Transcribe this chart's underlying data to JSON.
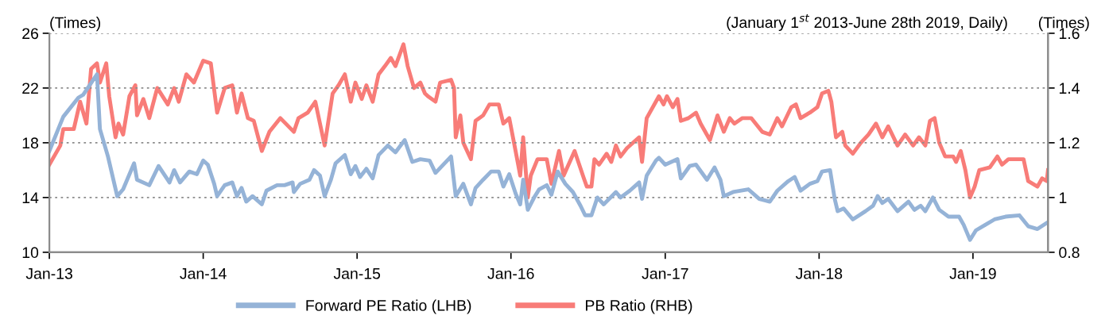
{
  "chart_data": {
    "type": "line",
    "subtitle": "(January 1$^{st}$ 2013-June 28th 2019, Daily)",
    "ylabel": "(Times)",
    "y2label": "(Times)",
    "xlim": [
      "2013-01-01",
      "2019-06-28"
    ],
    "xticks": [
      {
        "value": "2013-01-01",
        "label": "Jan-13"
      },
      {
        "value": "2014-01-01",
        "label": "Jan-14"
      },
      {
        "value": "2015-01-01",
        "label": "Jan-15"
      },
      {
        "value": "2016-01-01",
        "label": "Jan-16"
      },
      {
        "value": "2017-01-01",
        "label": "Jan-17"
      },
      {
        "value": "2018-01-01",
        "label": "Jan-18"
      },
      {
        "value": "2019-01-01",
        "label": "Jan-19"
      }
    ],
    "ylim": [
      10,
      26
    ],
    "yticks": [
      10,
      14,
      18,
      22,
      26
    ],
    "y2lim": [
      0.8,
      1.6
    ],
    "y2ticks": [
      0.8,
      {
        "value": 1.0,
        "label": "1"
      },
      1.2,
      1.4,
      1.6
    ],
    "grid": "y",
    "legend": "bottom",
    "marker": "none",
    "line_style": "solid",
    "series": [
      {
        "name": "Forward PE Ratio (LHB)",
        "color": "#95b3d7",
        "x": [
          "2013-01-01",
          "2013-02-03",
          "2013-03-11",
          "2013-03-22",
          "2013-04-24",
          "2013-05-01",
          "2013-05-20",
          "2013-06-11",
          "2013-06-25",
          "2013-07-21",
          "2013-07-28",
          "2013-08-26",
          "2013-09-17",
          "2013-10-13",
          "2013-10-24",
          "2013-11-07",
          "2013-11-29",
          "2013-12-17",
          "2014-01-01",
          "2014-01-12",
          "2014-01-27",
          "2014-02-03",
          "2014-02-21",
          "2014-03-11",
          "2014-03-22",
          "2014-04-02",
          "2014-04-13",
          "2014-04-28",
          "2014-05-20",
          "2014-05-31",
          "2014-06-25",
          "2014-07-13",
          "2014-08-01",
          "2014-08-04",
          "2014-08-19",
          "2014-09-10",
          "2014-09-21",
          "2014-10-05",
          "2014-10-16",
          "2014-10-31",
          "2014-11-11",
          "2014-12-03",
          "2014-12-17",
          "2014-12-28",
          "2015-01-08",
          "2015-01-23",
          "2015-02-07",
          "2015-02-21",
          "2015-03-15",
          "2015-04-02",
          "2015-04-24",
          "2015-05-12",
          "2015-05-31",
          "2015-06-22",
          "2015-07-06",
          "2015-08-12",
          "2015-08-23",
          "2015-09-10",
          "2015-09-28",
          "2015-10-09",
          "2015-10-27",
          "2015-11-15",
          "2015-12-03",
          "2015-12-14",
          "2015-12-28",
          "2016-01-12",
          "2016-01-23",
          "2016-01-30",
          "2016-02-10",
          "2016-02-25",
          "2016-03-08",
          "2016-03-26",
          "2016-04-06",
          "2016-04-21",
          "2016-05-09",
          "2016-05-27",
          "2016-06-14",
          "2016-06-25",
          "2016-07-10",
          "2016-07-24",
          "2016-08-08",
          "2016-09-06",
          "2016-09-17",
          "2016-10-09",
          "2016-10-31",
          "2016-11-07",
          "2016-11-18",
          "2016-12-10",
          "2016-12-17",
          "2017-01-01",
          "2017-01-30",
          "2017-02-07",
          "2017-02-28",
          "2017-03-15",
          "2017-04-10",
          "2017-04-28",
          "2017-05-12",
          "2017-05-20",
          "2017-06-11",
          "2017-07-17",
          "2017-08-12",
          "2017-09-06",
          "2017-09-24",
          "2017-10-20",
          "2017-11-04",
          "2017-11-18",
          "2017-12-10",
          "2017-12-28",
          "2018-01-08",
          "2018-01-27",
          "2018-02-07",
          "2018-02-14",
          "2018-02-28",
          "2018-03-22",
          "2018-04-21",
          "2018-05-09",
          "2018-05-20",
          "2018-05-31",
          "2018-06-14",
          "2018-07-06",
          "2018-08-01",
          "2018-08-15",
          "2018-08-30",
          "2018-09-10",
          "2018-09-28",
          "2018-10-13",
          "2018-11-04",
          "2018-11-29",
          "2018-12-10",
          "2018-12-25",
          "2019-01-08",
          "2019-01-30",
          "2019-02-21",
          "2019-03-19",
          "2019-04-21",
          "2019-05-12",
          "2019-06-03",
          "2019-06-28"
        ],
        "values": [
          17.4,
          19.9,
          21.3,
          21.5,
          23.0,
          19.0,
          17.0,
          14.1,
          14.6,
          16.5,
          15.3,
          14.9,
          16.3,
          15.1,
          16.0,
          15.1,
          15.9,
          15.7,
          16.7,
          16.4,
          15.0,
          14.1,
          14.9,
          15.1,
          14.1,
          14.7,
          13.7,
          14.1,
          13.5,
          14.5,
          14.9,
          14.9,
          15.1,
          14.4,
          15.0,
          15.3,
          16.0,
          15.6,
          14.1,
          15.3,
          16.5,
          17.1,
          15.7,
          16.3,
          15.5,
          16.1,
          15.4,
          17.1,
          17.8,
          17.3,
          18.2,
          16.6,
          16.8,
          16.7,
          15.8,
          17.0,
          14.1,
          15.0,
          13.5,
          14.7,
          15.3,
          15.9,
          15.9,
          14.8,
          15.7,
          14.3,
          13.5,
          15.3,
          13.1,
          14.0,
          14.6,
          14.9,
          14.2,
          15.9,
          15.0,
          14.4,
          13.4,
          12.7,
          12.7,
          14.0,
          13.5,
          14.4,
          14.0,
          14.5,
          15.1,
          13.9,
          15.6,
          16.7,
          16.9,
          16.4,
          16.8,
          15.4,
          16.3,
          16.4,
          15.3,
          16.2,
          15.3,
          14.1,
          14.4,
          14.6,
          13.9,
          13.7,
          14.5,
          15.2,
          15.5,
          14.5,
          15.0,
          15.2,
          15.9,
          16.0,
          13.9,
          13.0,
          13.2,
          12.4,
          13.0,
          13.4,
          14.1,
          13.6,
          13.9,
          13.0,
          13.7,
          13.1,
          13.4,
          13.0,
          14.0,
          13.1,
          12.6,
          12.6,
          12.0,
          10.9,
          11.6,
          12.0,
          12.4,
          12.6,
          12.7,
          11.9,
          11.7,
          12.2
        ]
      },
      {
        "name": "PB Ratio (RHB)",
        "color": "#f87c78",
        "axis": "y2",
        "x": [
          "2013-01-01",
          "2013-01-27",
          "2013-02-03",
          "2013-02-28",
          "2013-03-15",
          "2013-03-30",
          "2013-04-10",
          "2013-04-24",
          "2013-05-01",
          "2013-05-16",
          "2013-05-23",
          "2013-06-07",
          "2013-06-14",
          "2013-06-25",
          "2013-07-10",
          "2013-07-24",
          "2013-07-28",
          "2013-08-12",
          "2013-08-26",
          "2013-09-14",
          "2013-10-09",
          "2013-10-24",
          "2013-11-04",
          "2013-11-22",
          "2013-12-10",
          "2014-01-01",
          "2014-01-19",
          "2014-02-03",
          "2014-02-21",
          "2014-03-11",
          "2014-03-22",
          "2014-04-02",
          "2014-04-17",
          "2014-05-01",
          "2014-05-20",
          "2014-06-07",
          "2014-07-03",
          "2014-08-04",
          "2014-08-15",
          "2014-09-06",
          "2014-09-24",
          "2014-10-16",
          "2014-11-04",
          "2014-11-18",
          "2014-12-03",
          "2014-12-17",
          "2014-12-28",
          "2015-01-12",
          "2015-01-23",
          "2015-02-07",
          "2015-02-21",
          "2015-03-08",
          "2015-03-22",
          "2015-04-02",
          "2015-04-21",
          "2015-05-01",
          "2015-05-16",
          "2015-05-31",
          "2015-06-11",
          "2015-06-18",
          "2015-07-06",
          "2015-07-17",
          "2015-08-12",
          "2015-08-19",
          "2015-08-23",
          "2015-09-03",
          "2015-09-10",
          "2015-09-28",
          "2015-10-09",
          "2015-10-27",
          "2015-11-11",
          "2015-12-03",
          "2015-12-14",
          "2015-12-28",
          "2016-01-12",
          "2016-01-23",
          "2016-01-30",
          "2016-02-10",
          "2016-02-17",
          "2016-03-04",
          "2016-03-26",
          "2016-04-06",
          "2016-04-24",
          "2016-05-05",
          "2016-05-31",
          "2016-06-22",
          "2016-06-29",
          "2016-07-10",
          "2016-07-17",
          "2016-07-28",
          "2016-08-15",
          "2016-08-26",
          "2016-09-06",
          "2016-09-17",
          "2016-10-02",
          "2016-10-31",
          "2016-11-07",
          "2016-11-18",
          "2016-12-17",
          "2016-12-28",
          "2017-01-05",
          "2017-01-19",
          "2017-01-30",
          "2017-02-07",
          "2017-02-25",
          "2017-03-15",
          "2017-03-26",
          "2017-04-17",
          "2017-05-05",
          "2017-05-20",
          "2017-06-03",
          "2017-06-14",
          "2017-07-03",
          "2017-07-24",
          "2017-08-19",
          "2017-09-06",
          "2017-09-24",
          "2017-10-05",
          "2017-10-27",
          "2017-11-07",
          "2017-11-18",
          "2017-12-10",
          "2017-12-28",
          "2018-01-08",
          "2018-01-23",
          "2018-01-30",
          "2018-02-10",
          "2018-02-25",
          "2018-03-04",
          "2018-03-22",
          "2018-04-10",
          "2018-04-28",
          "2018-05-16",
          "2018-05-31",
          "2018-06-14",
          "2018-07-06",
          "2018-07-24",
          "2018-08-12",
          "2018-08-26",
          "2018-09-10",
          "2018-09-21",
          "2018-10-02",
          "2018-10-13",
          "2018-10-27",
          "2018-11-15",
          "2018-11-22",
          "2018-12-03",
          "2018-12-14",
          "2018-12-25",
          "2019-01-05",
          "2019-01-16",
          "2019-02-10",
          "2019-02-28",
          "2019-03-11",
          "2019-03-26",
          "2019-05-01",
          "2019-05-12",
          "2019-06-03",
          "2019-06-14",
          "2019-06-25",
          "2019-06-28"
        ],
        "values": [
          1.12,
          1.19,
          1.25,
          1.25,
          1.35,
          1.27,
          1.47,
          1.49,
          1.42,
          1.49,
          1.37,
          1.22,
          1.27,
          1.23,
          1.37,
          1.41,
          1.3,
          1.36,
          1.29,
          1.4,
          1.34,
          1.4,
          1.35,
          1.45,
          1.42,
          1.5,
          1.49,
          1.31,
          1.4,
          1.41,
          1.31,
          1.38,
          1.29,
          1.28,
          1.17,
          1.24,
          1.29,
          1.24,
          1.29,
          1.31,
          1.35,
          1.19,
          1.38,
          1.41,
          1.45,
          1.35,
          1.42,
          1.36,
          1.41,
          1.35,
          1.45,
          1.48,
          1.51,
          1.48,
          1.56,
          1.48,
          1.4,
          1.42,
          1.38,
          1.37,
          1.35,
          1.42,
          1.43,
          1.4,
          1.22,
          1.3,
          1.2,
          1.14,
          1.28,
          1.3,
          1.34,
          1.34,
          1.27,
          1.29,
          1.17,
          1.08,
          1.22,
          1.0,
          1.08,
          1.14,
          1.14,
          1.05,
          1.17,
          1.08,
          1.17,
          1.07,
          1.04,
          1.04,
          1.14,
          1.12,
          1.16,
          1.13,
          1.19,
          1.15,
          1.18,
          1.22,
          1.13,
          1.29,
          1.37,
          1.34,
          1.37,
          1.33,
          1.36,
          1.28,
          1.29,
          1.31,
          1.27,
          1.21,
          1.3,
          1.24,
          1.29,
          1.27,
          1.29,
          1.29,
          1.24,
          1.23,
          1.29,
          1.26,
          1.33,
          1.34,
          1.29,
          1.31,
          1.33,
          1.38,
          1.39,
          1.35,
          1.22,
          1.24,
          1.19,
          1.16,
          1.2,
          1.23,
          1.27,
          1.22,
          1.26,
          1.19,
          1.23,
          1.19,
          1.22,
          1.19,
          1.28,
          1.29,
          1.2,
          1.15,
          1.15,
          1.13,
          1.17,
          1.1,
          1.0,
          1.04,
          1.1,
          1.11,
          1.15,
          1.12,
          1.14,
          1.14,
          1.06,
          1.04,
          1.07,
          1.06,
          1.1
        ]
      }
    ]
  }
}
